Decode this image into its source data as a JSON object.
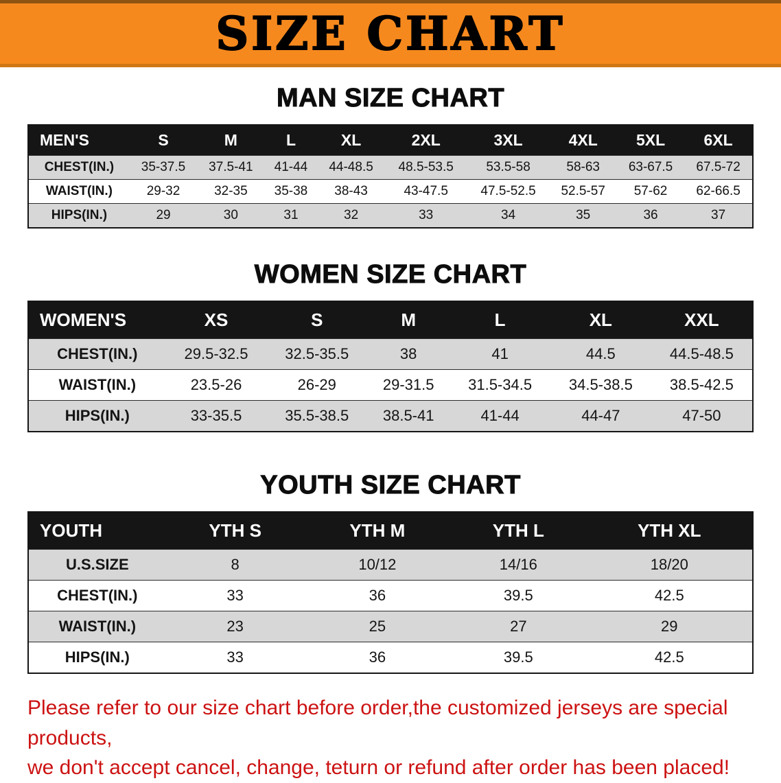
{
  "banner": {
    "title": "SIZE CHART"
  },
  "chart_data": [
    {
      "type": "table",
      "title": "MAN SIZE CHART",
      "columns": [
        "MEN'S",
        "S",
        "M",
        "L",
        "XL",
        "2XL",
        "3XL",
        "4XL",
        "5XL",
        "6XL"
      ],
      "rows": [
        [
          "CHEST(IN.)",
          "35-37.5",
          "37.5-41",
          "41-44",
          "44-48.5",
          "48.5-53.5",
          "53.5-58",
          "58-63",
          "63-67.5",
          "67.5-72"
        ],
        [
          "WAIST(IN.)",
          "29-32",
          "32-35",
          "35-38",
          "38-43",
          "43-47.5",
          "47.5-52.5",
          "52.5-57",
          "57-62",
          "62-66.5"
        ],
        [
          "HIPS(IN.)",
          "29",
          "30",
          "31",
          "32",
          "33",
          "34",
          "35",
          "36",
          "37"
        ]
      ]
    },
    {
      "type": "table",
      "title": "WOMEN SIZE CHART",
      "columns": [
        "WOMEN'S",
        "XS",
        "S",
        "M",
        "L",
        "XL",
        "XXL"
      ],
      "rows": [
        [
          "CHEST(IN.)",
          "29.5-32.5",
          "32.5-35.5",
          "38",
          "41",
          "44.5",
          "44.5-48.5"
        ],
        [
          "WAIST(IN.)",
          "23.5-26",
          "26-29",
          "29-31.5",
          "31.5-34.5",
          "34.5-38.5",
          "38.5-42.5"
        ],
        [
          "HIPS(IN.)",
          "33-35.5",
          "35.5-38.5",
          "38.5-41",
          "41-44",
          "44-47",
          "47-50"
        ]
      ]
    },
    {
      "type": "table",
      "title": "YOUTH SIZE CHART",
      "columns": [
        "YOUTH",
        "YTH S",
        "YTH M",
        "YTH L",
        "YTH XL"
      ],
      "rows": [
        [
          "U.S.SIZE",
          "8",
          "10/12",
          "14/16",
          "18/20"
        ],
        [
          "CHEST(IN.)",
          "33",
          "36",
          "39.5",
          "42.5"
        ],
        [
          "WAIST(IN.)",
          "23",
          "25",
          "27",
          "29"
        ],
        [
          "HIPS(IN.)",
          "33",
          "36",
          "39.5",
          "42.5"
        ]
      ]
    }
  ],
  "footer": {
    "line1": "Please refer to our size chart before order,the customized jerseys are special products,",
    "line2": "we don't accept cancel, change, teturn or refund after order has been placed!"
  },
  "colors": {
    "banner_bg": "#f6891e",
    "table_header_bg": "#151515",
    "row_stripe": "#d7d7d7",
    "notice_red": "#cc1212"
  }
}
